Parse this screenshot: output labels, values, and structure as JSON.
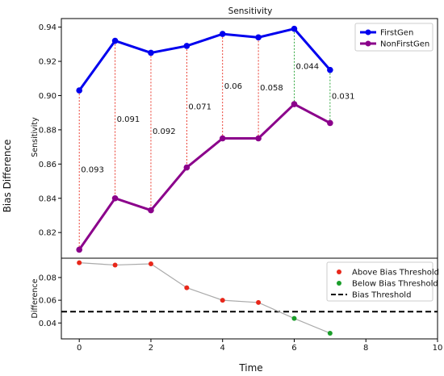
{
  "figure": {
    "outer_ylabel": "Bias Difference",
    "xlabel": "Time"
  },
  "chart_data": [
    {
      "type": "line",
      "title": "Sensitivity",
      "ylabel": "Sensitivity",
      "xlabel": "",
      "xlim": [
        -0.5,
        10
      ],
      "ylim": [
        0.805,
        0.945
      ],
      "yticks": [
        "0.82",
        "0.84",
        "0.86",
        "0.88",
        "0.90",
        "0.92",
        "0.94"
      ],
      "x": [
        0,
        1,
        2,
        3,
        4,
        5,
        6,
        7
      ],
      "series": [
        {
          "name": "FirstGen",
          "color": "#0000ee",
          "values": [
            0.903,
            0.932,
            0.925,
            0.929,
            0.936,
            0.934,
            0.939,
            0.915
          ]
        },
        {
          "name": "NonFirstGen",
          "color": "#8b008b",
          "values": [
            0.81,
            0.84,
            0.833,
            0.858,
            0.875,
            0.875,
            0.895,
            0.884
          ]
        }
      ],
      "difference_labels": [
        "0.093",
        "0.091",
        "0.092",
        "0.071",
        "0.06",
        "0.058",
        "0.044",
        "0.031"
      ],
      "difference_colors": [
        "#e8271a",
        "#e8271a",
        "#e8271a",
        "#e8271a",
        "#e8271a",
        "#e8271a",
        "#1a9e2a",
        "#1a9e2a"
      ],
      "legend_position": "top-right",
      "grid": false
    },
    {
      "type": "scatter",
      "title": "",
      "ylabel": "Difference",
      "xlabel": "Time",
      "xlim": [
        -0.5,
        10
      ],
      "ylim": [
        0.026,
        0.097
      ],
      "xticks": [
        "0",
        "2",
        "4",
        "6",
        "8",
        "10"
      ],
      "yticks": [
        "0.04",
        "0.06",
        "0.08"
      ],
      "x": [
        0,
        1,
        2,
        3,
        4,
        5,
        6,
        7
      ],
      "values": [
        0.093,
        0.091,
        0.092,
        0.071,
        0.06,
        0.058,
        0.044,
        0.031
      ],
      "line_color": "#aaaaaa",
      "point_colors": [
        "#e8271a",
        "#e8271a",
        "#e8271a",
        "#e8271a",
        "#e8271a",
        "#e8271a",
        "#1a9e2a",
        "#1a9e2a"
      ],
      "threshold": 0.05,
      "legend": [
        {
          "name": "Above Bias Threshold",
          "color": "#e8271a",
          "marker": "dot"
        },
        {
          "name": "Below Bias Threshold",
          "color": "#1a9e2a",
          "marker": "dot"
        },
        {
          "name": "Bias Threshold",
          "color": "#000000",
          "marker": "dashed-line"
        }
      ],
      "legend_position": "top-right",
      "grid": false
    }
  ]
}
